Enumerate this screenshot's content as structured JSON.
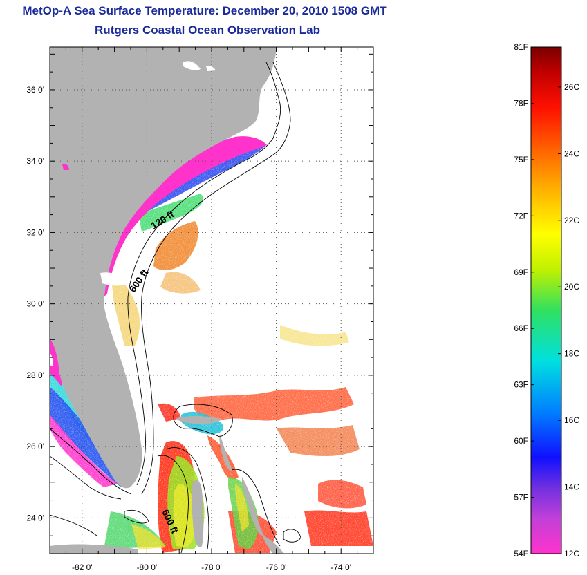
{
  "title": "MetOp-A Sea Surface Temperature:  December 20, 2010 1508 GMT",
  "subtitle": "Rutgers Coastal Ocean Observation Lab",
  "map": {
    "x_axis": {
      "ticks": [
        {
          "value": -82,
          "label": "-82 0'"
        },
        {
          "value": -80,
          "label": "-80 0'"
        },
        {
          "value": -78,
          "label": "-78 0'"
        },
        {
          "value": -76,
          "label": "-76 0'"
        },
        {
          "value": -74,
          "label": "-74 0'"
        }
      ],
      "range": [
        -83,
        -73
      ]
    },
    "y_axis": {
      "ticks": [
        {
          "value": 36,
          "label": "36 0'"
        },
        {
          "value": 34,
          "label": "34 0'"
        },
        {
          "value": 32,
          "label": "32 0'"
        },
        {
          "value": 30,
          "label": "30 0'"
        },
        {
          "value": 28,
          "label": "28 0'"
        },
        {
          "value": 26,
          "label": "26 0'"
        },
        {
          "value": 24,
          "label": "24 0'"
        }
      ],
      "range": [
        23,
        37.2
      ]
    },
    "grid": true,
    "contour_labels": [
      "120 ft",
      "600 ft",
      "600 ft"
    ],
    "colors": {
      "land": "#b2b2b2",
      "ocean_nodata": "#ffffff",
      "grid": "#555555"
    }
  },
  "colorbar": {
    "fahrenheit_labels": [
      "81F",
      "78F",
      "75F",
      "72F",
      "69F",
      "66F",
      "63F",
      "60F",
      "57F",
      "54F"
    ],
    "celsius_labels": [
      "26C",
      "24C",
      "22C",
      "20C",
      "18C",
      "16C",
      "14C",
      "12C"
    ],
    "range_celsius": [
      12,
      27.2
    ],
    "gradient_stops": [
      "#ff33cc",
      "#c040d8",
      "#7030e0",
      "#1010ff",
      "#0080ff",
      "#00e0e0",
      "#30e060",
      "#c0f000",
      "#ffff00",
      "#ffb000",
      "#ff6000",
      "#ff1000",
      "#c00000",
      "#7a0000"
    ]
  }
}
